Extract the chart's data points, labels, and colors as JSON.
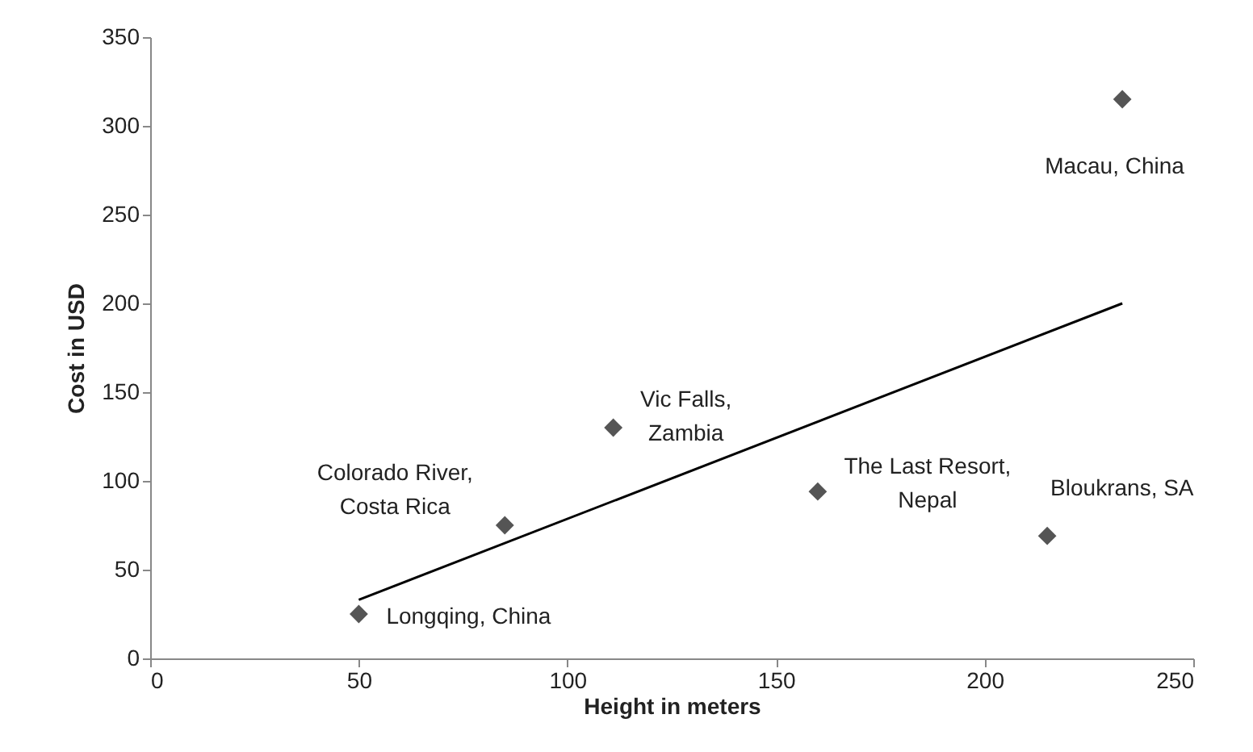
{
  "chart_data": {
    "type": "scatter",
    "xlabel": "Height in meters",
    "ylabel": "Cost in USD",
    "xlim": [
      0,
      250
    ],
    "ylim": [
      0,
      350
    ],
    "xticks": [
      0,
      50,
      100,
      150,
      200,
      250
    ],
    "yticks": [
      0,
      50,
      100,
      150,
      200,
      250,
      300,
      350
    ],
    "grid": false,
    "series": [
      {
        "marker": "diamond",
        "color": "#555555",
        "x": [
          50,
          85,
          111,
          160,
          215,
          233
        ],
        "values": [
          25,
          75,
          130,
          94,
          69,
          315
        ]
      },
      {
        "type": "line",
        "marker": "none",
        "color": "#000000",
        "x": [
          50,
          233
        ],
        "values": [
          33,
          200
        ]
      }
    ],
    "annotations": [
      {
        "text": "Longqing, China",
        "x": 50,
        "y": 25
      },
      {
        "text": "Colorado River,\nCosta Rica",
        "x": 85,
        "y": 75
      },
      {
        "text": "Vic Falls,\nZambia",
        "x": 111,
        "y": 130
      },
      {
        "text": "The Last Resort,\nNepal",
        "x": 160,
        "y": 94
      },
      {
        "text": "Bloukrans, SA",
        "x": 215,
        "y": 69
      },
      {
        "text": "Macau, China",
        "x": 233,
        "y": 315
      }
    ]
  }
}
